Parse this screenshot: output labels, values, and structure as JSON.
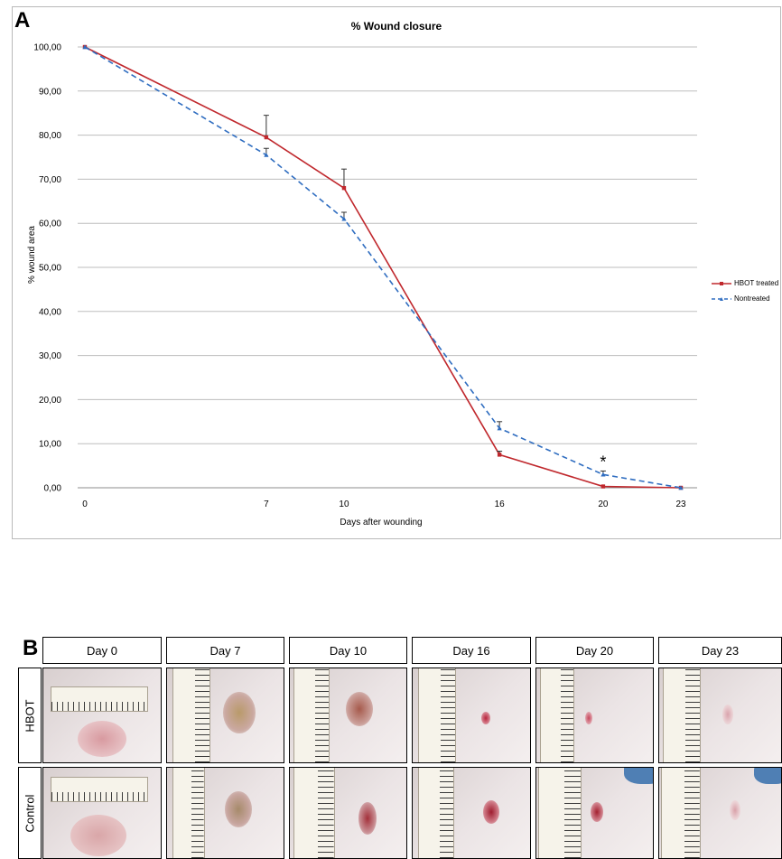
{
  "panel_a": {
    "letter": "A",
    "title": "% Wound closure",
    "ylabel": "% wound  area",
    "xlabel": "Days after wounding",
    "legend": [
      "HBOT treated",
      "Nontreated"
    ],
    "significance_marker": "*"
  },
  "chart_data": {
    "type": "line",
    "title": "% Wound closure",
    "xlabel": "Days after wounding",
    "ylabel": "% wound  area",
    "x": [
      0,
      7,
      10,
      16,
      20,
      23
    ],
    "x_tick_labels": [
      "0",
      "7",
      "10",
      "16",
      "20",
      "23"
    ],
    "ylim": [
      0,
      100
    ],
    "y_tick_labels": [
      "0,00",
      "10,00",
      "20,00",
      "30,00",
      "40,00",
      "50,00",
      "60,00",
      "70,00",
      "80,00",
      "90,00",
      "100,00"
    ],
    "grid": true,
    "legend_position": "right",
    "series": [
      {
        "name": "HBOT treated",
        "color": "#c0282d",
        "style": "solid",
        "values": [
          100,
          79.5,
          68,
          7.5,
          0.3,
          0
        ],
        "error": [
          0,
          5,
          4.3,
          0.8,
          0,
          0
        ]
      },
      {
        "name": "Nontreated",
        "color": "#2f6dc0",
        "style": "dashed",
        "values": [
          100,
          75.5,
          61,
          13.5,
          3,
          0
        ],
        "error": [
          0,
          1.5,
          1.5,
          1.5,
          0.8,
          0
        ]
      }
    ],
    "annotations": [
      {
        "x": 20,
        "text": "*"
      }
    ]
  },
  "panel_b": {
    "letter": "B",
    "days": [
      "Day 0",
      "Day 7",
      "Day 10",
      "Day 16",
      "Day 20",
      "Day 23"
    ],
    "rows": [
      "HBOT",
      "Control"
    ]
  }
}
